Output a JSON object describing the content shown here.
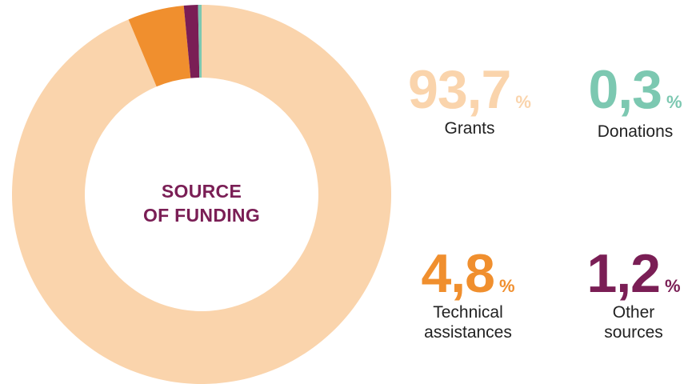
{
  "chart_data": {
    "type": "pie",
    "title": "SOURCE OF FUNDING",
    "slices": [
      {
        "label": "Grants",
        "value": 93.7,
        "display": "93,7",
        "color": "#fad4ac"
      },
      {
        "label": "Technical assistances",
        "value": 4.8,
        "display": "4,8",
        "color": "#f08f2e"
      },
      {
        "label": "Other sources",
        "value": 1.2,
        "display": "1,2",
        "color": "#7a1e55"
      },
      {
        "label": "Donations",
        "value": 0.3,
        "display": "0,3",
        "color": "#7cc8b1"
      }
    ],
    "percent_sign": "%"
  },
  "stats": {
    "grants": {
      "value": "93,7",
      "pct": "%",
      "label": "Grants"
    },
    "donations": {
      "value": "0,3",
      "pct": "%",
      "label": "Donations"
    },
    "technical": {
      "value": "4,8",
      "pct": "%",
      "label_line1": "Technical",
      "label_line2": "assistances"
    },
    "other": {
      "value": "1,2",
      "pct": "%",
      "label_line1": "Other",
      "label_line2": "sources"
    }
  }
}
